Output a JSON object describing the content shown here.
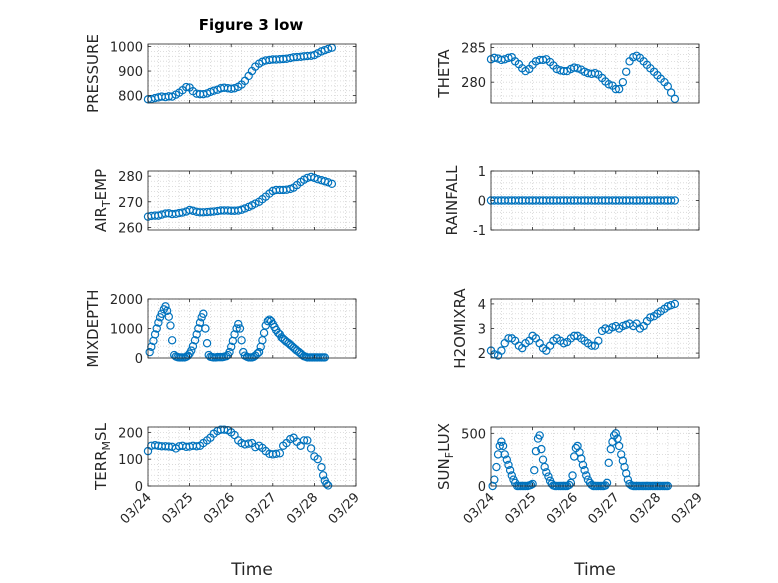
{
  "title": "Figure 3 low",
  "xlabel": "Time",
  "xtick_labels": [
    "03/24",
    "03/25",
    "03/26",
    "03/27",
    "03/28",
    "03/29"
  ],
  "marker_color": "#0072BD",
  "chart_data": [
    {
      "type": "scatter",
      "marker": "circle",
      "ylabel": "PRESSURE",
      "xlim": [
        0,
        5
      ],
      "ylim": [
        770,
        1010
      ],
      "yticks": [
        800,
        900,
        1000
      ],
      "ytick_labels": [
        "800",
        "900",
        "1000"
      ],
      "x": [
        0.0,
        0.08,
        0.17,
        0.25,
        0.33,
        0.42,
        0.5,
        0.58,
        0.67,
        0.75,
        0.83,
        0.92,
        1.0,
        1.08,
        1.17,
        1.25,
        1.33,
        1.42,
        1.5,
        1.58,
        1.67,
        1.75,
        1.83,
        1.92,
        2.0,
        2.08,
        2.17,
        2.25,
        2.33,
        2.42,
        2.5,
        2.58,
        2.67,
        2.75,
        2.83,
        2.92,
        3.0,
        3.08,
        3.17,
        3.25,
        3.33,
        3.42,
        3.5,
        3.58,
        3.67,
        3.75,
        3.83,
        3.92,
        4.0,
        4.08,
        4.17,
        4.25,
        4.33,
        4.42
      ],
      "y": [
        785,
        786,
        790,
        793,
        796,
        794,
        797,
        796,
        804,
        812,
        822,
        835,
        833,
        818,
        808,
        806,
        806,
        809,
        815,
        820,
        824,
        830,
        832,
        830,
        828,
        830,
        836,
        845,
        860,
        880,
        900,
        918,
        930,
        938,
        943,
        945,
        947,
        947,
        948,
        949,
        950,
        953,
        956,
        957,
        958,
        960,
        961,
        962,
        965,
        972,
        980,
        985,
        990,
        995
      ]
    },
    {
      "type": "scatter",
      "marker": "circle",
      "ylabel": "THETA",
      "xlim": [
        0,
        5
      ],
      "ylim": [
        277,
        285.5
      ],
      "yticks": [
        280,
        285
      ],
      "ytick_labels": [
        "280",
        "285"
      ],
      "x": [
        0.0,
        0.08,
        0.17,
        0.25,
        0.33,
        0.42,
        0.5,
        0.58,
        0.67,
        0.75,
        0.83,
        0.92,
        1.0,
        1.08,
        1.17,
        1.25,
        1.33,
        1.42,
        1.5,
        1.58,
        1.67,
        1.75,
        1.83,
        1.92,
        2.0,
        2.08,
        2.17,
        2.25,
        2.33,
        2.42,
        2.5,
        2.58,
        2.67,
        2.75,
        2.83,
        2.92,
        3.0,
        3.08,
        3.17,
        3.25,
        3.33,
        3.42,
        3.5,
        3.58,
        3.67,
        3.75,
        3.83,
        3.92,
        4.0,
        4.08,
        4.17,
        4.25,
        4.33,
        4.42
      ],
      "y": [
        283.3,
        283.5,
        283.4,
        283.2,
        283.3,
        283.5,
        283.6,
        283.0,
        282.6,
        282.0,
        281.6,
        281.9,
        282.5,
        283.0,
        283.2,
        283.2,
        283.3,
        282.9,
        282.4,
        281.9,
        281.7,
        281.6,
        281.6,
        281.9,
        282.1,
        282.0,
        281.8,
        281.5,
        281.3,
        281.2,
        281.3,
        281.1,
        280.6,
        280.1,
        279.7,
        279.5,
        279.0,
        279.0,
        280.0,
        281.5,
        283.0,
        283.6,
        283.8,
        283.5,
        283.0,
        282.5,
        282.0,
        281.5,
        281.0,
        280.5,
        280.0,
        279.4,
        278.5,
        277.6
      ]
    },
    {
      "type": "scatter",
      "marker": "circle",
      "ylabel": "AIR_TEMP",
      "xlim": [
        0,
        5
      ],
      "ylim": [
        259,
        282
      ],
      "yticks": [
        260,
        270,
        280
      ],
      "ytick_labels": [
        "260",
        "270",
        "280"
      ],
      "x": [
        0.0,
        0.08,
        0.17,
        0.25,
        0.33,
        0.42,
        0.5,
        0.58,
        0.67,
        0.75,
        0.83,
        0.92,
        1.0,
        1.08,
        1.17,
        1.25,
        1.33,
        1.42,
        1.5,
        1.58,
        1.67,
        1.75,
        1.83,
        1.92,
        2.0,
        2.08,
        2.17,
        2.25,
        2.33,
        2.42,
        2.5,
        2.58,
        2.67,
        2.75,
        2.83,
        2.92,
        3.0,
        3.08,
        3.17,
        3.25,
        3.33,
        3.42,
        3.5,
        3.58,
        3.67,
        3.75,
        3.83,
        3.92,
        4.0,
        4.08,
        4.17,
        4.25,
        4.33,
        4.42
      ],
      "y": [
        264.2,
        264.5,
        264.6,
        264.6,
        265.0,
        265.4,
        265.5,
        265.2,
        265.3,
        265.6,
        265.8,
        266.2,
        266.8,
        266.5,
        266.1,
        265.9,
        265.9,
        266.0,
        266.1,
        266.2,
        266.4,
        266.6,
        266.6,
        266.6,
        266.5,
        266.5,
        266.6,
        266.9,
        267.4,
        268.0,
        268.6,
        269.3,
        270.0,
        271.0,
        272.0,
        273.2,
        274.2,
        274.6,
        274.6,
        274.6,
        274.7,
        275.0,
        275.5,
        276.5,
        277.7,
        278.6,
        279.3,
        279.7,
        279.3,
        278.8,
        278.4,
        278.0,
        277.6,
        277.0
      ]
    },
    {
      "type": "scatter",
      "marker": "circle",
      "ylabel": "RAINFALL",
      "xlim": [
        0,
        5
      ],
      "ylim": [
        -1,
        1
      ],
      "yticks": [
        -1,
        0,
        1
      ],
      "ytick_labels": [
        "-1",
        "0",
        "1"
      ],
      "x": [
        0.0,
        0.08,
        0.17,
        0.25,
        0.33,
        0.42,
        0.5,
        0.58,
        0.67,
        0.75,
        0.83,
        0.92,
        1.0,
        1.08,
        1.17,
        1.25,
        1.33,
        1.42,
        1.5,
        1.58,
        1.67,
        1.75,
        1.83,
        1.92,
        2.0,
        2.08,
        2.17,
        2.25,
        2.33,
        2.42,
        2.5,
        2.58,
        2.67,
        2.75,
        2.83,
        2.92,
        3.0,
        3.08,
        3.17,
        3.25,
        3.33,
        3.42,
        3.5,
        3.58,
        3.67,
        3.75,
        3.83,
        3.92,
        4.0,
        4.08,
        4.17,
        4.25,
        4.33,
        4.42
      ],
      "y": [
        0,
        0,
        0,
        0,
        0,
        0,
        0,
        0,
        0,
        0,
        0,
        0,
        0,
        0,
        0,
        0,
        0,
        0,
        0,
        0,
        0,
        0,
        0,
        0,
        0,
        0,
        0,
        0,
        0,
        0,
        0,
        0,
        0,
        0,
        0,
        0,
        0,
        0,
        0,
        0,
        0,
        0,
        0,
        0,
        0,
        0,
        0,
        0,
        0,
        0,
        0,
        0,
        0,
        0
      ]
    },
    {
      "type": "scatter",
      "marker": "circle",
      "ylabel": "MIXDEPTH",
      "xlim": [
        0,
        5
      ],
      "ylim": [
        0,
        2000
      ],
      "yticks": [
        0,
        1000,
        2000
      ],
      "ytick_labels": [
        "0",
        "1000",
        "2000"
      ],
      "x": [
        0.04,
        0.08,
        0.13,
        0.17,
        0.21,
        0.25,
        0.29,
        0.33,
        0.38,
        0.42,
        0.46,
        0.5,
        0.54,
        0.58,
        0.63,
        0.67,
        0.71,
        0.75,
        0.79,
        0.83,
        0.88,
        0.92,
        0.96,
        1.0,
        1.04,
        1.08,
        1.13,
        1.17,
        1.21,
        1.25,
        1.29,
        1.33,
        1.38,
        1.42,
        1.46,
        1.5,
        1.54,
        1.58,
        1.63,
        1.67,
        1.71,
        1.75,
        1.79,
        1.83,
        1.88,
        1.92,
        1.96,
        2.0,
        2.04,
        2.08,
        2.13,
        2.17,
        2.21,
        2.25,
        2.29,
        2.33,
        2.38,
        2.42,
        2.46,
        2.5,
        2.54,
        2.58,
        2.63,
        2.67,
        2.71,
        2.75,
        2.79,
        2.83,
        2.88,
        2.92,
        2.96,
        3.0,
        3.04,
        3.08,
        3.13,
        3.17,
        3.21,
        3.25,
        3.29,
        3.33,
        3.38,
        3.42,
        3.46,
        3.5,
        3.54,
        3.58,
        3.63,
        3.67,
        3.71,
        3.75,
        3.79,
        3.83,
        3.88,
        3.92,
        3.96,
        4.0,
        4.04,
        4.08,
        4.13,
        4.17,
        4.21,
        4.25
      ],
      "y": [
        200,
        380,
        580,
        800,
        1000,
        1200,
        1380,
        1500,
        1650,
        1750,
        1600,
        1400,
        1100,
        600,
        100,
        50,
        30,
        20,
        20,
        20,
        20,
        40,
        80,
        150,
        250,
        400,
        600,
        800,
        1000,
        1200,
        1380,
        1500,
        1000,
        500,
        100,
        40,
        30,
        20,
        20,
        30,
        30,
        30,
        30,
        40,
        60,
        100,
        200,
        380,
        580,
        800,
        1000,
        1150,
        1000,
        600,
        200,
        80,
        40,
        20,
        20,
        20,
        40,
        80,
        150,
        200,
        380,
        600,
        850,
        1100,
        1250,
        1300,
        1250,
        1150,
        1050,
        950,
        850,
        800,
        700,
        650,
        600,
        550,
        500,
        450,
        400,
        350,
        300,
        250,
        200,
        150,
        100,
        60,
        40,
        20,
        20,
        20,
        20,
        20,
        20,
        20,
        20,
        20,
        20,
        20
      ]
    },
    {
      "type": "scatter",
      "marker": "circle",
      "ylabel": "H2OMIXRA",
      "xlim": [
        0,
        5
      ],
      "ylim": [
        1.8,
        4.2
      ],
      "yticks": [
        2,
        3,
        4
      ],
      "ytick_labels": [
        "2",
        "3",
        "4"
      ],
      "x": [
        0.0,
        0.08,
        0.17,
        0.25,
        0.33,
        0.42,
        0.5,
        0.58,
        0.67,
        0.75,
        0.83,
        0.92,
        1.0,
        1.08,
        1.17,
        1.25,
        1.33,
        1.42,
        1.5,
        1.58,
        1.67,
        1.75,
        1.83,
        1.92,
        2.0,
        2.08,
        2.17,
        2.25,
        2.33,
        2.42,
        2.5,
        2.58,
        2.67,
        2.75,
        2.83,
        2.92,
        3.0,
        3.08,
        3.17,
        3.25,
        3.33,
        3.42,
        3.5,
        3.58,
        3.67,
        3.75,
        3.83,
        3.92,
        4.0,
        4.08,
        4.17,
        4.25,
        4.33,
        4.42
      ],
      "y": [
        2.1,
        1.95,
        1.9,
        2.1,
        2.4,
        2.6,
        2.6,
        2.5,
        2.3,
        2.2,
        2.4,
        2.5,
        2.7,
        2.6,
        2.4,
        2.2,
        2.1,
        2.3,
        2.5,
        2.6,
        2.5,
        2.4,
        2.45,
        2.6,
        2.7,
        2.7,
        2.6,
        2.5,
        2.4,
        2.3,
        2.3,
        2.5,
        2.9,
        3.0,
        2.95,
        3.05,
        3.1,
        3.0,
        3.1,
        3.15,
        3.2,
        3.1,
        3.2,
        3.0,
        3.1,
        3.3,
        3.45,
        3.5,
        3.6,
        3.7,
        3.8,
        3.9,
        3.95,
        4.0
      ]
    },
    {
      "type": "scatter",
      "marker": "circle",
      "ylabel": "TERR_MSL",
      "xlim": [
        0,
        5
      ],
      "ylim": [
        0,
        220
      ],
      "yticks": [
        0,
        100,
        200
      ],
      "ytick_labels": [
        "0",
        "100",
        "200"
      ],
      "x": [
        0.0,
        0.08,
        0.17,
        0.25,
        0.33,
        0.42,
        0.5,
        0.58,
        0.67,
        0.75,
        0.83,
        0.92,
        1.0,
        1.08,
        1.17,
        1.25,
        1.33,
        1.42,
        1.5,
        1.58,
        1.67,
        1.75,
        1.83,
        1.92,
        2.0,
        2.08,
        2.17,
        2.25,
        2.33,
        2.42,
        2.5,
        2.58,
        2.67,
        2.75,
        2.83,
        2.92,
        3.0,
        3.08,
        3.17,
        3.25,
        3.33,
        3.42,
        3.5,
        3.58,
        3.67,
        3.75,
        3.83,
        3.92,
        4.0,
        4.08,
        4.17,
        4.21,
        4.25,
        4.29,
        4.33
      ],
      "y": [
        130,
        150,
        152,
        150,
        148,
        148,
        147,
        146,
        140,
        148,
        150,
        146,
        147,
        150,
        148,
        150,
        160,
        170,
        180,
        195,
        205,
        210,
        210,
        208,
        200,
        190,
        170,
        160,
        155,
        158,
        160,
        145,
        150,
        142,
        130,
        120,
        118,
        120,
        122,
        150,
        160,
        175,
        180,
        165,
        150,
        170,
        170,
        140,
        110,
        100,
        70,
        40,
        20,
        8,
        2
      ]
    },
    {
      "type": "scatter",
      "marker": "circle",
      "ylabel": "SUN_FLUX",
      "xlim": [
        0,
        5
      ],
      "ylim": [
        0,
        560
      ],
      "yticks": [
        0,
        500
      ],
      "ytick_labels": [
        "0",
        "500"
      ],
      "x": [
        0.04,
        0.08,
        0.13,
        0.17,
        0.21,
        0.25,
        0.29,
        0.33,
        0.38,
        0.42,
        0.46,
        0.5,
        0.54,
        0.58,
        0.63,
        0.67,
        0.71,
        0.75,
        0.79,
        0.83,
        0.88,
        0.92,
        0.96,
        1.0,
        1.04,
        1.08,
        1.13,
        1.17,
        1.21,
        1.25,
        1.29,
        1.33,
        1.38,
        1.42,
        1.46,
        1.5,
        1.54,
        1.58,
        1.63,
        1.67,
        1.71,
        1.75,
        1.79,
        1.83,
        1.88,
        1.92,
        1.96,
        2.0,
        2.04,
        2.08,
        2.13,
        2.17,
        2.21,
        2.25,
        2.29,
        2.33,
        2.38,
        2.42,
        2.46,
        2.5,
        2.54,
        2.58,
        2.63,
        2.67,
        2.71,
        2.75,
        2.79,
        2.83,
        2.88,
        2.92,
        2.96,
        3.0,
        3.04,
        3.08,
        3.13,
        3.17,
        3.21,
        3.25,
        3.29,
        3.33,
        3.38,
        3.42,
        3.46,
        3.5,
        3.54,
        3.58,
        3.63,
        3.67,
        3.71,
        3.75,
        3.79,
        3.83,
        3.88,
        3.92,
        3.96,
        4.0,
        4.04,
        4.08,
        4.13,
        4.17,
        4.21,
        4.25
      ],
      "y": [
        0,
        60,
        180,
        300,
        380,
        420,
        380,
        300,
        250,
        200,
        150,
        100,
        60,
        30,
        0,
        0,
        0,
        0,
        0,
        0,
        0,
        5,
        10,
        20,
        150,
        330,
        450,
        480,
        350,
        250,
        180,
        130,
        90,
        50,
        20,
        5,
        0,
        0,
        0,
        0,
        0,
        0,
        0,
        0,
        10,
        30,
        100,
        280,
        360,
        380,
        320,
        260,
        200,
        150,
        100,
        60,
        30,
        10,
        0,
        0,
        0,
        0,
        0,
        0,
        0,
        5,
        30,
        220,
        350,
        420,
        480,
        500,
        450,
        380,
        300,
        240,
        180,
        120,
        60,
        20,
        5,
        0,
        0,
        0,
        0,
        0,
        0,
        0,
        0,
        0,
        0,
        0,
        0,
        0,
        0,
        0,
        0,
        0,
        0,
        0,
        0,
        0
      ]
    }
  ]
}
